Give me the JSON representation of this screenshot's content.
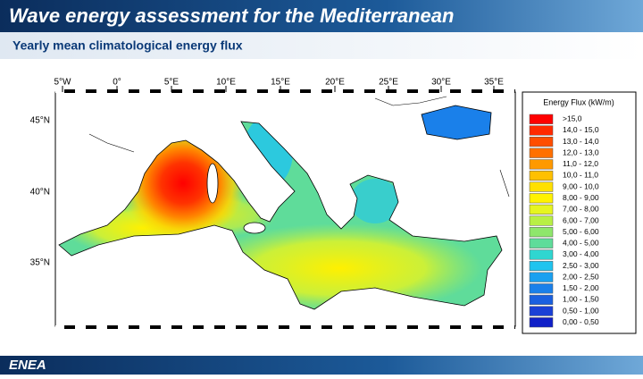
{
  "header": {
    "title": "Wave energy assessment for the Mediterranean",
    "subtitle": "Yearly mean climatological energy flux"
  },
  "map": {
    "lon_labels": [
      "5°W",
      "0°",
      "5°E",
      "10°E",
      "15°E",
      "20°E",
      "25°E",
      "30°E",
      "35°E"
    ],
    "lat_labels": [
      "45°N",
      "40°N",
      "35°N"
    ]
  },
  "legend": {
    "title": "Energy Flux (kW/m)",
    "items": [
      {
        "label": ">15,0",
        "color": "#ff0000"
      },
      {
        "label": "14,0 - 15,0",
        "color": "#ff2a00"
      },
      {
        "label": "13,0 - 14,0",
        "color": "#ff4d00"
      },
      {
        "label": "12,0 - 13,0",
        "color": "#ff7000"
      },
      {
        "label": "11,0 - 12,0",
        "color": "#ff9900"
      },
      {
        "label": "10,0 - 11,0",
        "color": "#ffc000"
      },
      {
        "label": "9,00 - 10,0",
        "color": "#ffe000"
      },
      {
        "label": "8,00 - 9,00",
        "color": "#fff200"
      },
      {
        "label": "7,00 - 8,00",
        "color": "#e6f520"
      },
      {
        "label": "6,00 - 7,00",
        "color": "#b8ef45"
      },
      {
        "label": "5,00 - 6,00",
        "color": "#8ee66b"
      },
      {
        "label": "4,00 - 5,00",
        "color": "#5fdc9a"
      },
      {
        "label": "3,00 - 4,00",
        "color": "#2fd6d0"
      },
      {
        "label": "2,50 - 3,00",
        "color": "#1fc4ef"
      },
      {
        "label": "2,00 - 2,50",
        "color": "#1aa0f0"
      },
      {
        "label": "1,50 - 2,00",
        "color": "#1a80ea"
      },
      {
        "label": "1,00 - 1,50",
        "color": "#1a60e0"
      },
      {
        "label": "0,50 - 1,00",
        "color": "#1a40d6"
      },
      {
        "label": "0,00 - 0,50",
        "color": "#1020c8"
      }
    ]
  },
  "logo": "ENEA"
}
